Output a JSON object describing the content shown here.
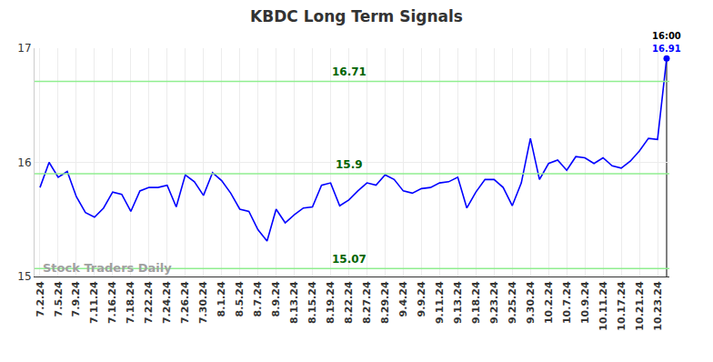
{
  "chart_data": {
    "type": "line",
    "title": "KBDC Long Term Signals",
    "categories": [
      "7.2.24",
      null,
      "7.5.24",
      null,
      "7.9.24",
      null,
      "7.11.24",
      null,
      "7.16.24",
      null,
      "7.18.24",
      null,
      "7.22.24",
      null,
      "7.24.24",
      null,
      "7.26.24",
      null,
      "7.30.24",
      null,
      "8.1.24",
      null,
      "8.5.24",
      null,
      "8.7.24",
      null,
      "8.9.24",
      null,
      "8.13.24",
      null,
      "8.15.24",
      null,
      "8.19.24",
      null,
      "8.22.24",
      null,
      "8.27.24",
      null,
      "8.29.24",
      null,
      "9.4.24",
      null,
      "9.9.24",
      null,
      "9.11.24",
      null,
      "9.13.24",
      null,
      "9.18.24",
      null,
      "9.23.24",
      null,
      "9.25.24",
      null,
      "9.30.24",
      null,
      "10.2.24",
      null,
      "10.7.24",
      null,
      "10.9.24",
      null,
      "10.11.24",
      null,
      "10.17.24",
      null,
      "10.21.24",
      null,
      "10.23.24",
      null
    ],
    "values": [
      15.78,
      16.0,
      15.87,
      15.92,
      15.7,
      15.56,
      15.52,
      15.6,
      15.74,
      15.72,
      15.57,
      15.75,
      15.78,
      15.78,
      15.8,
      15.61,
      15.89,
      15.83,
      15.71,
      15.91,
      15.84,
      15.73,
      15.59,
      15.57,
      15.41,
      15.31,
      15.59,
      15.47,
      15.54,
      15.6,
      15.61,
      15.8,
      15.82,
      15.62,
      15.67,
      15.75,
      15.82,
      15.8,
      15.89,
      15.85,
      15.75,
      15.73,
      15.77,
      15.78,
      15.82,
      15.83,
      15.87,
      15.6,
      15.74,
      15.85,
      15.85,
      15.78,
      15.62,
      15.82,
      16.21,
      15.85,
      15.99,
      16.02,
      15.93,
      16.05,
      16.04,
      15.99,
      16.04,
      15.97,
      15.95,
      16.01,
      16.1,
      16.21,
      16.2,
      16.91
    ],
    "color": "#0000ff",
    "levels": [
      16.71,
      15.9,
      15.07
    ],
    "level_color": "#90ee90",
    "level_label_color": "#006400",
    "annotations": [
      "16:00",
      "Stock Traders Daily"
    ],
    "ylim": [
      15,
      17
    ],
    "yticks": [
      15,
      16,
      17
    ],
    "grid": true
  }
}
